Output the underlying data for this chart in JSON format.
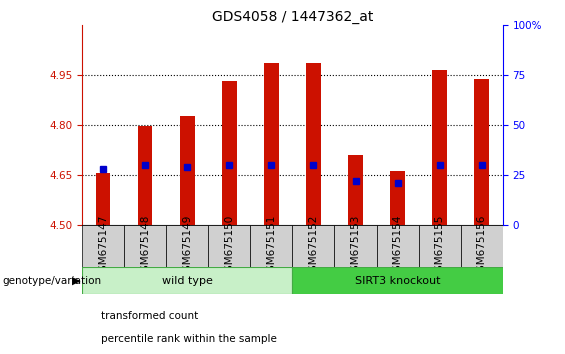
{
  "title": "GDS4058 / 1447362_at",
  "samples": [
    "GSM675147",
    "GSM675148",
    "GSM675149",
    "GSM675150",
    "GSM675151",
    "GSM675152",
    "GSM675153",
    "GSM675154",
    "GSM675155",
    "GSM675156"
  ],
  "transformed_count": [
    4.655,
    4.795,
    4.825,
    4.932,
    4.985,
    4.985,
    4.71,
    4.662,
    4.965,
    4.938
  ],
  "percentile_value": [
    28,
    30,
    29,
    30,
    30,
    30,
    22,
    21,
    30,
    30
  ],
  "ylim_left": [
    4.5,
    5.1
  ],
  "ylim_right": [
    0,
    100
  ],
  "yticks_left": [
    4.5,
    4.65,
    4.8,
    4.95
  ],
  "yticks_right": [
    0,
    25,
    50,
    75,
    100
  ],
  "ytick_right_labels": [
    "0",
    "25",
    "50",
    "75",
    "100%"
  ],
  "groups": [
    {
      "label": "wild type",
      "indices": [
        0,
        1,
        2,
        3,
        4
      ],
      "color": "#c8f0c8",
      "edge_color": "#44aa44"
    },
    {
      "label": "SIRT3 knockout",
      "indices": [
        5,
        6,
        7,
        8,
        9
      ],
      "color": "#44cc44",
      "edge_color": "#44aa44"
    }
  ],
  "bar_color": "#CC1100",
  "dot_color": "#0000CC",
  "bar_width": 0.35,
  "base_value": 4.5,
  "grid_color": "#000000",
  "genotype_label": "genotype/variation",
  "legend_items": [
    {
      "color": "#CC1100",
      "label": "transformed count"
    },
    {
      "color": "#0000CC",
      "label": "percentile rank within the sample"
    }
  ],
  "left_axis_color": "#CC1100",
  "right_axis_color": "#0000FF",
  "title_fontsize": 10,
  "tick_fontsize": 7.5
}
